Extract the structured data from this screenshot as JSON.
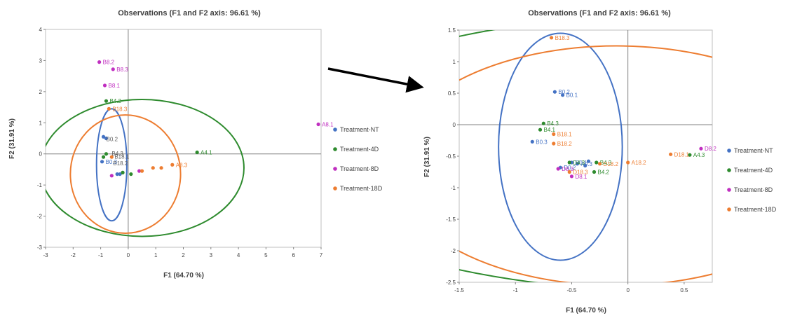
{
  "colors": {
    "nt": "#4472c4",
    "d4": "#2e8b2e",
    "d8": "#c02fc0",
    "d18": "#ed7d31",
    "arrow": "#000000"
  },
  "chart_data": [
    {
      "type": "scatter",
      "title": "Observations (F1 and F2 axis: 96.61 %)",
      "xlabel": "F1 (64.70 %)",
      "ylabel": "F2 (31.91 %)",
      "xlim": [
        -3,
        7
      ],
      "ylim": [
        -3,
        4
      ],
      "xticks": [
        "-3",
        "-2",
        "-1",
        "0",
        "1",
        "2",
        "3",
        "4",
        "5",
        "6",
        "7"
      ],
      "yticks": [
        "-3",
        "-2",
        "-1",
        "0",
        "1",
        "2",
        "3",
        "4"
      ],
      "legend_position": "right",
      "series": [
        {
          "name": "Treatment-NT",
          "color_key": "nt",
          "points": [
            {
              "x": -0.9,
              "y": 0.55
            },
            {
              "x": -0.8,
              "y": 0.5
            },
            {
              "x": -0.95,
              "y": -0.25,
              "label": "B0.3"
            },
            {
              "x": -0.4,
              "y": -0.65
            },
            {
              "x": -0.3,
              "y": -0.65
            },
            {
              "x": -0.2,
              "y": -0.6
            }
          ]
        },
        {
          "name": "Treatment-4D",
          "color_key": "d4",
          "points": [
            {
              "x": -0.8,
              "y": 1.7,
              "label": "B4.2"
            },
            {
              "x": -0.9,
              "y": -0.1
            },
            {
              "x": -0.8,
              "y": 0.0
            },
            {
              "x": 2.5,
              "y": 0.05,
              "label": "A4.1"
            },
            {
              "x": -0.2,
              "y": -0.6
            },
            {
              "x": 0.1,
              "y": -0.65
            }
          ]
        },
        {
          "name": "Treatment-8D",
          "color_key": "d8",
          "points": [
            {
              "x": -1.05,
              "y": 2.95,
              "label": "B8.2"
            },
            {
              "x": -0.55,
              "y": 2.72,
              "label": "B8.3"
            },
            {
              "x": -0.85,
              "y": 2.2,
              "label": "B8.1"
            },
            {
              "x": 6.9,
              "y": 0.95,
              "label": "A8.1"
            },
            {
              "x": -0.6,
              "y": -0.7
            },
            {
              "x": 0.4,
              "y": -0.55
            }
          ]
        },
        {
          "name": "Treatment-18D",
          "color_key": "d18",
          "points": [
            {
              "x": -0.7,
              "y": 1.45,
              "label": "B18.3"
            },
            {
              "x": -0.6,
              "y": -0.1
            },
            {
              "x": 0.5,
              "y": -0.55
            },
            {
              "x": 0.9,
              "y": -0.45
            },
            {
              "x": 1.6,
              "y": -0.35,
              "label": "A8.3"
            },
            {
              "x": 1.2,
              "y": -0.45
            }
          ]
        }
      ],
      "extra_labels": [
        "B0.2",
        "B4.3",
        "B18.1",
        "B18.2"
      ],
      "ellipses": [
        {
          "series": "Treatment-NT",
          "cx": -0.6,
          "cy": -0.35,
          "rx": 0.55,
          "ry": 1.8
        },
        {
          "series": "Treatment-18D",
          "cx": -0.1,
          "cy": -0.65,
          "rx": 2.0,
          "ry": 1.9
        },
        {
          "series": "Treatment-4D",
          "cx": 0.5,
          "cy": -0.45,
          "rx": 3.7,
          "ry": 2.2
        },
        {
          "series": "Treatment-8D",
          "cx": 10.0,
          "cy": 6.5,
          "rx": 4.0,
          "ry": 3.6
        }
      ]
    },
    {
      "type": "scatter",
      "title": "Observations (F1 and F2 axis: 96.61 %)",
      "xlabel": "F1 (64.70 %)",
      "ylabel": "F2 (31.91 %)",
      "xlim": [
        -1.5,
        0.75
      ],
      "ylim": [
        -2.5,
        1.5
      ],
      "xticks": [
        "-1.5",
        "-1",
        "-0.5",
        "0",
        "0.5"
      ],
      "yticks": [
        "-2.5",
        "-2",
        "-1.5",
        "-1",
        "-0.5",
        "0",
        "0.5",
        "1",
        "1.5"
      ],
      "legend_position": "right",
      "series": [
        {
          "name": "Treatment-NT",
          "color_key": "nt",
          "points": [
            {
              "x": -0.65,
              "y": 0.52,
              "label": "B0.2"
            },
            {
              "x": -0.58,
              "y": 0.47,
              "label": "B0.1"
            },
            {
              "x": -0.85,
              "y": -0.27,
              "label": "B0.3"
            },
            {
              "x": -0.6,
              "y": -0.68,
              "label": "D0.2"
            },
            {
              "x": -0.5,
              "y": -0.6,
              "label": "D0.1"
            },
            {
              "x": -0.45,
              "y": -0.62,
              "label": "A0.3"
            },
            {
              "x": -0.38,
              "y": -0.65
            },
            {
              "x": -0.35,
              "y": -0.58
            }
          ]
        },
        {
          "name": "Treatment-4D",
          "color_key": "d4",
          "points": [
            {
              "x": -0.75,
              "y": 0.02,
              "label": "B4.3"
            },
            {
              "x": -0.78,
              "y": -0.08,
              "label": "B4.1"
            },
            {
              "x": -0.28,
              "y": -0.6,
              "label": "B4.3"
            },
            {
              "x": -0.3,
              "y": -0.75,
              "label": "B4.2"
            },
            {
              "x": 0.55,
              "y": -0.48,
              "label": "A4.3"
            },
            {
              "x": -0.52,
              "y": -0.6,
              "label": "D4.3"
            }
          ]
        },
        {
          "name": "Treatment-8D",
          "color_key": "d8",
          "points": [
            {
              "x": 0.65,
              "y": -0.38,
              "label": "D8.2"
            },
            {
              "x": -0.62,
              "y": -0.7,
              "label": "D8.3"
            },
            {
              "x": -0.5,
              "y": -0.82,
              "label": "D8.1"
            }
          ]
        },
        {
          "name": "Treatment-18D",
          "color_key": "d18",
          "points": [
            {
              "x": -0.68,
              "y": 1.38,
              "label": "B18.3"
            },
            {
              "x": -0.66,
              "y": -0.15,
              "label": "B18.1"
            },
            {
              "x": -0.66,
              "y": -0.3,
              "label": "B18.2"
            },
            {
              "x": 0.38,
              "y": -0.47,
              "label": "D18.1"
            },
            {
              "x": -0.25,
              "y": -0.62,
              "label": "D18.2"
            },
            {
              "x": -0.52,
              "y": -0.75,
              "label": "D18.3"
            },
            {
              "x": 0.0,
              "y": -0.6,
              "label": "A18.2"
            }
          ]
        }
      ],
      "ellipses": [
        {
          "series": "Treatment-NT",
          "cx": -0.6,
          "cy": -0.35,
          "rx": 0.55,
          "ry": 1.8
        },
        {
          "series": "Treatment-18D",
          "cx": -0.1,
          "cy": -0.65,
          "rx": 2.0,
          "ry": 1.9
        },
        {
          "series": "Treatment-4D",
          "cx": 0.5,
          "cy": -0.45,
          "rx": 3.7,
          "ry": 2.2
        }
      ]
    }
  ]
}
